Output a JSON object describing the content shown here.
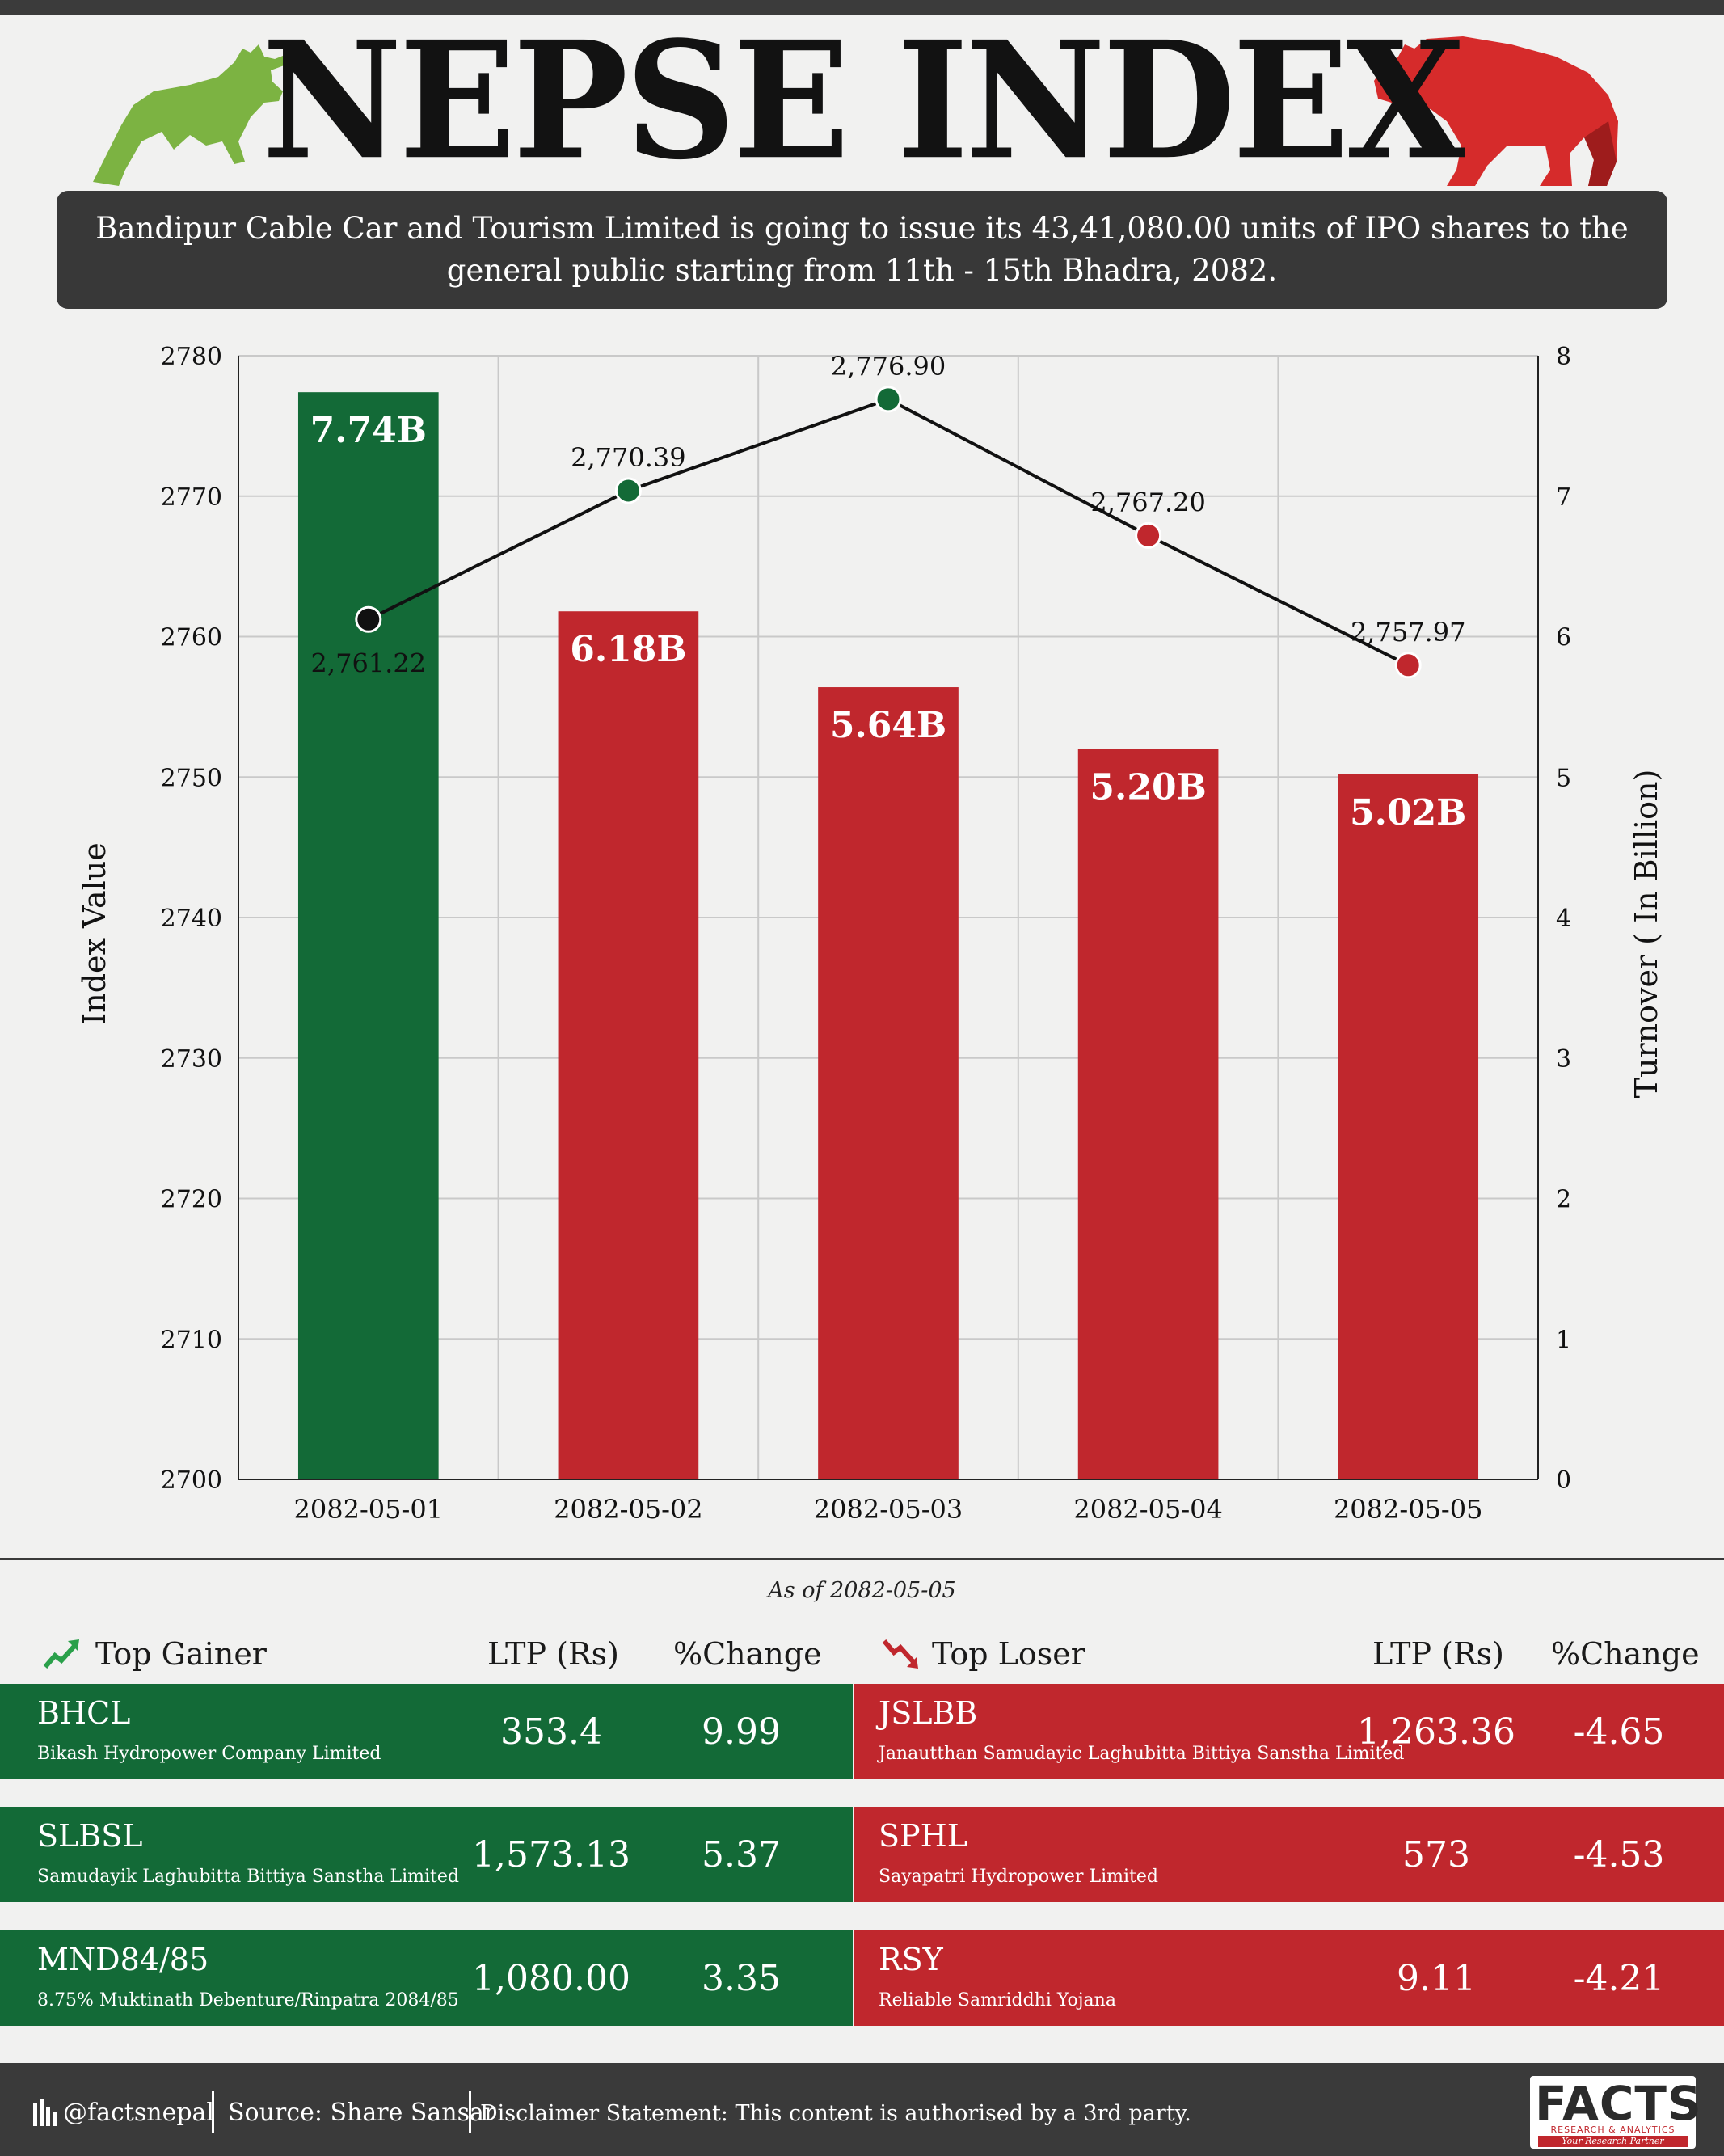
{
  "header": {
    "title": "NEPSE INDEX",
    "announcement": "Bandipur Cable Car and Tourism Limited is going to issue its 43,41,080.00 units of IPO shares to the general public starting from 11th - 15th Bhadra, 2082."
  },
  "icons": {
    "bull": "bull-icon",
    "bear": "bear-icon",
    "gain": "trend-up-icon",
    "loss": "trend-down-icon",
    "social": "bars-icon"
  },
  "colors": {
    "green": "#136a37",
    "red": "#c0272d",
    "dark": "#383838"
  },
  "chart_data": {
    "type": "bar",
    "categories": [
      "2082-05-01",
      "2082-05-02",
      "2082-05-03",
      "2082-05-04",
      "2082-05-05"
    ],
    "series": [
      {
        "type": "bar",
        "axis": "right",
        "values": [
          7.74,
          6.18,
          5.64,
          5.2,
          5.02
        ],
        "labels": [
          "7.74B",
          "6.18B",
          "5.64B",
          "5.20B",
          "5.02B"
        ],
        "colors": [
          "#136a37",
          "#c0272d",
          "#c0272d",
          "#c0272d",
          "#c0272d"
        ]
      },
      {
        "type": "line",
        "axis": "left",
        "values": [
          2761.22,
          2770.39,
          2776.9,
          2767.2,
          2757.97
        ],
        "labels": [
          "2,761.22",
          "2,770.39",
          "2,776.90",
          "2,767.20",
          "2,757.97"
        ],
        "colors": [
          "#111111",
          "#136a37",
          "#136a37",
          "#c0272d",
          "#c0272d"
        ]
      }
    ],
    "ylabel": "Index Value",
    "y2label": "Turnover ( In Billion)",
    "ylim": [
      2700,
      2780
    ],
    "y2lim": [
      0,
      8
    ],
    "yticks": [
      "2700",
      "2710",
      "2720",
      "2730",
      "2740",
      "2750",
      "2760",
      "2770",
      "2780"
    ],
    "y2ticks": [
      "0",
      "1",
      "2",
      "3",
      "4",
      "5",
      "6",
      "7",
      "8"
    ],
    "grid": true
  },
  "as_of": "As of 2082-05-05",
  "gainers": {
    "title": "Top Gainer",
    "col_ltp": "LTP (Rs)",
    "col_change": "%Change",
    "rows": [
      {
        "symbol": "BHCL",
        "name": "Bikash Hydropower Company Limited",
        "ltp": "353.4",
        "change": "9.99"
      },
      {
        "symbol": "SLBSL",
        "name": "Samudayik Laghubitta Bittiya Sanstha Limited",
        "ltp": "1,573.13",
        "change": "5.37"
      },
      {
        "symbol": "MND84/85",
        "name": "8.75% Muktinath Debenture/Rinpatra 2084/85",
        "ltp": "1,080.00",
        "change": "3.35"
      }
    ]
  },
  "losers": {
    "title": "Top Loser",
    "col_ltp": "LTP (Rs)",
    "col_change": "%Change",
    "rows": [
      {
        "symbol": "JSLBB",
        "name": "Janautthan Samudayic Laghubitta Bittiya Sanstha Limited",
        "ltp": "1,263.36",
        "change": "-4.65"
      },
      {
        "symbol": "SPHL",
        "name": "Sayapatri Hydropower Limited",
        "ltp": "573",
        "change": "-4.53"
      },
      {
        "symbol": "RSY",
        "name": "Reliable Samriddhi Yojana",
        "ltp": "9.11",
        "change": "-4.21"
      }
    ]
  },
  "footer": {
    "handle": "@factsnepal",
    "source": "Source: Share Sansar",
    "disclaimer": "Disclaimer Statement: This content is authorised by a 3rd party.",
    "logo": "FACTS",
    "logo_sub": "RESEARCH & ANALYTICS",
    "logo_tag": "Your Research Partner"
  }
}
